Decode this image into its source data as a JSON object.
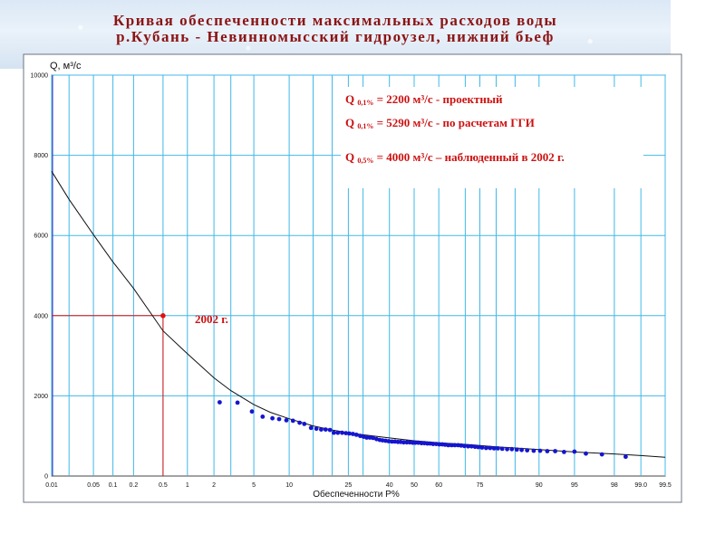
{
  "title": {
    "line1": "Кривая обеспеченности максимальных расходов воды",
    "line2": "р.Кубань - Невинномысский гидроузел, нижний бьеф"
  },
  "annotations": [
    {
      "prefix": "Q",
      "sub": "0,1%",
      "text": " = 2200 м³/с  - проектный"
    },
    {
      "prefix": "Q",
      "sub": "0,1%",
      "text": " = 5290 м³/с  - по расчетам ГГИ"
    },
    {
      "prefix": "Q",
      "sub": "0,5%",
      "text": " = 4000 м³/с – наблюденный в 2002 г."
    }
  ],
  "marker_label": "2002 г.",
  "colors": {
    "title": "#8b1414",
    "annotation": "#cc1111",
    "grid": "#40b8e8",
    "points": "#1515d0",
    "curve": "#111111",
    "marker": "#e01010"
  },
  "chart_data": {
    "type": "scatter",
    "xlabel": "Обеспеченности Р%",
    "ylabel": "Q, м³/с",
    "x_scale": "probability",
    "ylim": [
      0,
      10000
    ],
    "y_ticks": [
      0,
      2000,
      4000,
      6000,
      8000,
      10000
    ],
    "y_tick_labels": [
      "0",
      "2000",
      "4000",
      "6000",
      "8000",
      "10000"
    ],
    "x_ticks": [
      0.01,
      0.05,
      0.1,
      0.2,
      0.5,
      1,
      2,
      5,
      10,
      25,
      40,
      50,
      60,
      75,
      90,
      95,
      98,
      99.0,
      99.5
    ],
    "x_tick_labels": [
      "0.01",
      "0.05",
      "0.1",
      "0.2",
      "0.5",
      "1",
      "2",
      "5",
      "10",
      "25",
      "40",
      "50",
      "60",
      "75",
      "90",
      "95",
      "98",
      "99.0",
      "99.5"
    ],
    "x_grid": [
      0.01,
      0.02,
      0.05,
      0.1,
      0.2,
      0.5,
      1,
      2,
      3,
      5,
      10,
      15,
      20,
      25,
      30,
      40,
      50,
      60,
      70,
      75,
      80,
      85,
      90,
      95,
      98,
      99.0,
      99.5
    ],
    "y_grid": [
      2000,
      4000,
      6000,
      8000,
      10000
    ],
    "grid": true,
    "series": [
      {
        "type": "line",
        "x": [
          0.01,
          0.02,
          0.05,
          0.1,
          0.2,
          0.5,
          1,
          2,
          3,
          5,
          7,
          10,
          15,
          20,
          25,
          30,
          40,
          50,
          60,
          70,
          75,
          80,
          85,
          90,
          95,
          98,
          99.0,
          99.5
        ],
        "y": [
          7600,
          6900,
          6020,
          5340,
          4680,
          3620,
          3050,
          2450,
          2130,
          1780,
          1590,
          1430,
          1250,
          1150,
          1080,
          1030,
          950,
          880,
          830,
          790,
          760,
          730,
          700,
          660,
          600,
          550,
          510,
          470
        ]
      },
      {
        "type": "scatter",
        "x": [
          2.3,
          3.5,
          4.8,
          6,
          7.3,
          8.3,
          9.5,
          10.7,
          12,
          13,
          14.5,
          15.8,
          17,
          18.2,
          19.4,
          20.5,
          21.7,
          23,
          24.2,
          25.3,
          26.5,
          27.7,
          29,
          30.2,
          31.3,
          32.5,
          33.7,
          35,
          36.2,
          37.3,
          38.5,
          39.7,
          41,
          42.2,
          43.4,
          44.5,
          45.7,
          47,
          48.2,
          49.4,
          50.5,
          51.7,
          53,
          54.2,
          55.4,
          56.5,
          57.7,
          59,
          60.2,
          61.4,
          62.5,
          63.7,
          65,
          66.2,
          67.4,
          68.5,
          69.7,
          71,
          72.2,
          73.4,
          74.5,
          75.7,
          77,
          78.2,
          79.4,
          80.5,
          81.7,
          83,
          84.2,
          85.4,
          86.5,
          87.7,
          89,
          90.2,
          91.4,
          92.6,
          93.8,
          95,
          96.1,
          97.3,
          98.5
        ],
        "y": [
          1840,
          1830,
          1610,
          1480,
          1440,
          1420,
          1390,
          1380,
          1330,
          1300,
          1200,
          1180,
          1160,
          1160,
          1150,
          1080,
          1080,
          1080,
          1070,
          1060,
          1050,
          1030,
          1000,
          980,
          960,
          960,
          950,
          920,
          900,
          890,
          880,
          870,
          860,
          860,
          850,
          850,
          840,
          840,
          840,
          830,
          830,
          830,
          820,
          820,
          810,
          810,
          800,
          800,
          790,
          790,
          780,
          770,
          770,
          770,
          770,
          760,
          750,
          740,
          740,
          730,
          720,
          710,
          700,
          700,
          690,
          690,
          680,
          670,
          670,
          660,
          650,
          640,
          630,
          630,
          620,
          620,
          600,
          610,
          560,
          540,
          480
        ]
      },
      {
        "type": "marker",
        "name": "2002 г.",
        "x": [
          0.5
        ],
        "y": [
          4000
        ]
      }
    ]
  }
}
